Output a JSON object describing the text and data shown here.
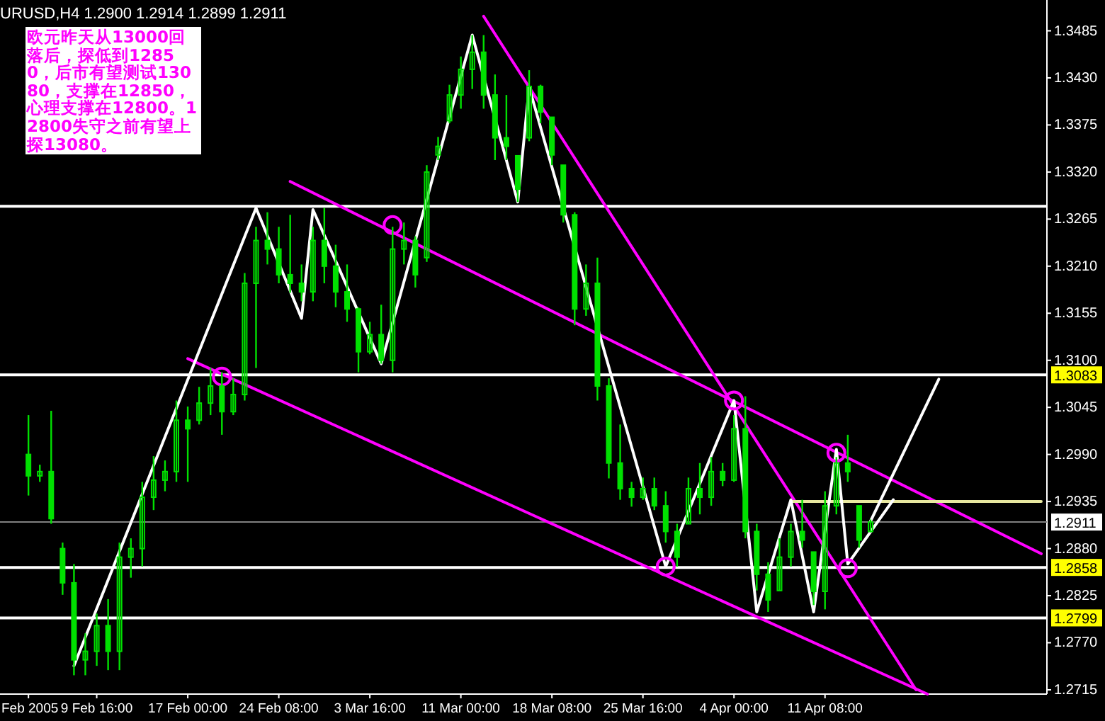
{
  "chart_data": {
    "type": "candlestick",
    "color": "#00e000",
    "categories": [
      null,
      null,
      "Feb 2005",
      null,
      null,
      null,
      null,
      null,
      "9 Feb 16:00",
      null,
      null,
      null,
      null,
      null,
      null,
      null,
      "17 Feb 00:00",
      null,
      null,
      null,
      null,
      null,
      null,
      null,
      "24 Feb 08:00",
      null,
      null,
      null,
      null,
      null,
      null,
      null,
      "3 Mar 16:00",
      null,
      null,
      null,
      null,
      null,
      null,
      null,
      "11 Mar 00:00",
      null,
      null,
      null,
      null,
      null,
      null,
      null,
      "18 Mar 08:00",
      null,
      null,
      null,
      null,
      null,
      null,
      null,
      "25 Mar 16:00",
      null,
      null,
      null,
      null,
      null,
      null,
      null,
      "4 Apr 00:00",
      null,
      null,
      null,
      null,
      null,
      null,
      null,
      "11 Apr 08:00",
      null,
      null,
      null,
      null,
      null,
      null,
      null,
      null,
      null,
      null,
      null,
      null,
      null,
      null,
      null,
      null,
      null,
      null,
      null
    ],
    "ohlc": [
      null,
      null,
      [
        1.299,
        1.3036,
        1.2942,
        1.2965
      ],
      [
        1.2965,
        1.2978,
        1.2958,
        1.297
      ],
      [
        1.297,
        1.3041,
        1.2909,
        1.2915
      ],
      [
        1.288,
        1.2887,
        1.2826,
        1.284
      ],
      [
        1.284,
        1.2862,
        1.2732,
        1.275
      ],
      [
        1.275,
        1.2781,
        1.2732,
        1.276
      ],
      [
        1.276,
        1.2804,
        1.2743,
        1.279
      ],
      [
        1.279,
        1.2821,
        1.2738,
        1.276
      ],
      [
        1.276,
        1.2887,
        1.2738,
        1.287
      ],
      [
        1.287,
        1.2892,
        1.2846,
        1.288
      ],
      [
        1.288,
        1.2958,
        1.2859,
        1.294
      ],
      [
        1.294,
        1.2988,
        1.2925,
        1.296
      ],
      [
        1.296,
        1.2983,
        1.2947,
        1.297
      ],
      [
        1.297,
        1.3053,
        1.2958,
        1.303
      ],
      [
        1.303,
        1.3046,
        1.2958,
        1.302
      ],
      [
        1.303,
        1.3069,
        1.3025,
        1.305
      ],
      [
        1.305,
        1.3091,
        1.3036,
        1.307
      ],
      [
        1.307,
        1.3086,
        1.3013,
        1.304
      ],
      [
        1.304,
        1.3079,
        1.3036,
        1.306
      ],
      [
        1.306,
        1.3202,
        1.3053,
        1.319
      ],
      [
        1.319,
        1.3256,
        1.3091,
        1.324
      ],
      [
        1.324,
        1.3273,
        1.3212,
        1.323
      ],
      [
        1.323,
        1.3256,
        1.319,
        1.32
      ],
      [
        1.32,
        1.327,
        1.3179,
        1.319
      ],
      [
        1.319,
        1.3212,
        1.3169,
        1.318
      ],
      [
        1.318,
        1.3256,
        1.3169,
        1.324
      ],
      [
        1.324,
        1.3278,
        1.319,
        1.321
      ],
      [
        1.321,
        1.3235,
        1.3162,
        1.318
      ],
      [
        1.318,
        1.3212,
        1.3145,
        1.316
      ],
      [
        1.316,
        1.3162,
        1.3086,
        1.311
      ],
      [
        1.311,
        1.3145,
        1.3107,
        1.313
      ],
      [
        1.313,
        1.3165,
        1.3096,
        1.31
      ],
      [
        1.31,
        1.3256,
        1.3086,
        1.323
      ],
      [
        1.323,
        1.3261,
        1.3212,
        1.324
      ],
      [
        1.324,
        1.3245,
        1.3185,
        1.32
      ],
      [
        1.322,
        1.3328,
        1.3215,
        1.332
      ],
      [
        1.334,
        1.3361,
        1.3334,
        1.335
      ],
      [
        1.338,
        1.3422,
        1.3377,
        1.341
      ],
      [
        1.341,
        1.3455,
        1.3394,
        1.344
      ],
      [
        1.344,
        1.348,
        1.3417,
        1.346
      ],
      [
        1.346,
        1.348,
        1.3394,
        1.341
      ],
      [
        1.341,
        1.3434,
        1.3334,
        1.336
      ],
      [
        1.336,
        1.341,
        1.3334,
        1.335
      ],
      [
        1.3339,
        1.3339,
        1.3285,
        1.33
      ],
      [
        1.336,
        1.3439,
        1.3356,
        1.342
      ],
      [
        1.342,
        1.3422,
        1.3377,
        1.339
      ],
      [
        1.3384,
        1.3384,
        1.3328,
        1.334
      ],
      [
        1.3328,
        1.3328,
        1.3261,
        1.327
      ],
      [
        1.327,
        1.3273,
        1.3141,
        1.316
      ],
      [
        1.316,
        1.3212,
        1.3152,
        1.319
      ],
      [
        1.319,
        1.322,
        1.3053,
        1.307
      ],
      [
        1.307,
        1.3079,
        1.2962,
        1.298
      ],
      [
        1.298,
        1.3025,
        1.2937,
        1.295
      ],
      [
        1.295,
        1.2958,
        1.2929,
        1.294
      ],
      [
        1.294,
        1.2963,
        1.2937,
        1.295
      ],
      [
        1.295,
        1.2963,
        1.2925,
        1.293
      ],
      [
        1.293,
        1.2947,
        1.2887,
        1.29
      ],
      [
        1.29,
        1.2909,
        1.2859,
        1.287
      ],
      [
        1.2909,
        1.2963,
        1.2909,
        1.295
      ],
      [
        1.295,
        1.298,
        1.292,
        1.294
      ],
      [
        1.294,
        1.2987,
        1.293,
        1.297
      ],
      [
        1.297,
        1.298,
        1.2953,
        1.296
      ],
      [
        1.296,
        1.3036,
        1.2958,
        1.302
      ],
      [
        1.302,
        1.3058,
        1.2892,
        1.29
      ],
      [
        1.29,
        1.2909,
        1.2831,
        1.285
      ],
      [
        1.285,
        1.2864,
        1.2806,
        1.282
      ],
      [
        1.2831,
        1.2892,
        1.2831,
        1.287
      ],
      [
        1.287,
        1.2909,
        1.2859,
        1.29
      ],
      [
        1.29,
        1.2937,
        1.2881,
        1.289
      ],
      [
        1.2876,
        1.2876,
        1.2814,
        1.283
      ],
      [
        1.283,
        1.2947,
        1.2809,
        1.293
      ],
      [
        1.293,
        1.2987,
        1.292,
        1.298
      ],
      [
        1.298,
        1.3013,
        1.2958,
        1.297
      ],
      [
        1.293,
        1.293,
        1.2881,
        1.289
      ],
      [
        1.29,
        1.2914,
        1.2899,
        1.2911
      ],
      null,
      null,
      null,
      null,
      null,
      null,
      null,
      null,
      null,
      null,
      null,
      null,
      null,
      null,
      null
    ],
    "series": [
      {
        "type": "line",
        "color": "#ff00ff",
        "values": [
          null,
          null,
          null,
          null,
          null,
          null,
          null,
          null,
          null,
          null,
          null,
          null,
          null,
          null,
          null,
          null,
          null,
          null,
          null,
          null,
          null,
          null,
          null,
          null,
          null,
          1.3309,
          null,
          null,
          null,
          null,
          null,
          null,
          null,
          null,
          null,
          null,
          null,
          null,
          null,
          null,
          null,
          null,
          null,
          null,
          null,
          null,
          null,
          null,
          null,
          null,
          null,
          null,
          null,
          null,
          null,
          null,
          null,
          null,
          null,
          null,
          null,
          null,
          null,
          null,
          null,
          null,
          null,
          null,
          null,
          null,
          null,
          null,
          null,
          null,
          null,
          null,
          null,
          null,
          null,
          null,
          null,
          null,
          null,
          null,
          null,
          null,
          null,
          null,
          null,
          null,
          null,
          1.2874
        ]
      },
      {
        "type": "line",
        "color": "#ff00ff",
        "values": [
          null,
          null,
          null,
          null,
          null,
          null,
          null,
          null,
          null,
          null,
          null,
          null,
          null,
          null,
          null,
          null,
          1.3102,
          null,
          null,
          null,
          null,
          null,
          null,
          null,
          null,
          null,
          null,
          null,
          null,
          null,
          null,
          null,
          null,
          null,
          null,
          null,
          null,
          null,
          null,
          null,
          null,
          null,
          null,
          null,
          null,
          null,
          null,
          null,
          null,
          null,
          null,
          null,
          null,
          null,
          null,
          null,
          null,
          null,
          null,
          null,
          null,
          null,
          null,
          null,
          null,
          null,
          null,
          null,
          null,
          null,
          null,
          null,
          null,
          null,
          null,
          null,
          null,
          null,
          null,
          null,
          null,
          1.271,
          null,
          null,
          null,
          null,
          null,
          null,
          null,
          null,
          null,
          null
        ]
      },
      {
        "type": "line",
        "color": "#ff00ff",
        "values": [
          null,
          null,
          null,
          null,
          null,
          null,
          null,
          null,
          null,
          null,
          null,
          null,
          null,
          null,
          null,
          null,
          null,
          null,
          null,
          null,
          null,
          null,
          null,
          null,
          null,
          null,
          null,
          null,
          null,
          null,
          null,
          null,
          null,
          null,
          null,
          null,
          null,
          null,
          null,
          null,
          null,
          null,
          1.3502,
          null,
          null,
          null,
          null,
          null,
          null,
          null,
          null,
          null,
          null,
          null,
          null,
          null,
          null,
          null,
          null,
          null,
          null,
          null,
          null,
          null,
          null,
          null,
          null,
          null,
          null,
          null,
          null,
          null,
          null,
          null,
          null,
          null,
          null,
          null,
          null,
          null,
          1.2715,
          null,
          null,
          null,
          null,
          null,
          null,
          null,
          null,
          null,
          null,
          null
        ]
      },
      {
        "type": "line",
        "color": "#e8e8a0",
        "values": [
          null,
          null,
          null,
          null,
          null,
          null,
          null,
          null,
          null,
          null,
          null,
          null,
          null,
          null,
          null,
          null,
          null,
          null,
          null,
          null,
          null,
          null,
          null,
          null,
          null,
          null,
          null,
          null,
          null,
          null,
          null,
          null,
          null,
          null,
          null,
          null,
          null,
          null,
          null,
          null,
          null,
          null,
          null,
          null,
          null,
          null,
          null,
          null,
          null,
          null,
          null,
          null,
          null,
          null,
          null,
          null,
          null,
          null,
          null,
          null,
          null,
          null,
          null,
          null,
          null,
          null,
          null,
          null,
          null,
          1.2935,
          null,
          null,
          null,
          null,
          null,
          null,
          null,
          null,
          null,
          null,
          null,
          null,
          null,
          null,
          null,
          null,
          null,
          null,
          null,
          null,
          null,
          1.2935
        ]
      },
      {
        "type": "line",
        "color": "#ffffff",
        "values": [
          null,
          null,
          null,
          null,
          null,
          null,
          1.2743,
          null,
          null,
          null,
          null,
          null,
          null,
          null,
          null,
          null,
          null,
          null,
          null,
          null,
          null,
          null,
          1.3278,
          null,
          null,
          null,
          1.3149,
          1.3276,
          null,
          null,
          null,
          null,
          null,
          1.3096,
          null,
          null,
          null,
          null,
          null,
          null,
          null,
          1.348,
          null,
          null,
          null,
          1.3285,
          1.3419,
          null,
          null,
          null,
          null,
          null,
          null,
          null,
          null,
          null,
          null,
          null,
          1.2859,
          null,
          null,
          null,
          null,
          null,
          1.3053,
          null,
          1.2806,
          null,
          null,
          1.2937,
          null,
          1.2806,
          null,
          1.2996,
          1.2862,
          null,
          null,
          null,
          1.2937,
          null,
          null,
          null,
          null,
          null,
          null,
          null,
          null,
          null,
          null,
          null,
          null,
          null
        ]
      },
      {
        "type": "line",
        "color": "#ffffff",
        "values": [
          null,
          null,
          null,
          null,
          null,
          null,
          null,
          null,
          null,
          null,
          null,
          null,
          null,
          null,
          null,
          null,
          null,
          null,
          null,
          null,
          null,
          null,
          null,
          null,
          null,
          null,
          null,
          null,
          null,
          null,
          null,
          null,
          null,
          null,
          null,
          null,
          null,
          null,
          null,
          null,
          null,
          null,
          null,
          null,
          null,
          null,
          null,
          null,
          null,
          null,
          null,
          null,
          null,
          null,
          null,
          null,
          null,
          null,
          null,
          null,
          null,
          null,
          null,
          null,
          null,
          null,
          null,
          null,
          null,
          null,
          null,
          null,
          null,
          null,
          null,
          null,
          1.2912,
          null,
          null,
          null,
          null,
          null,
          1.3078,
          null,
          null,
          null,
          null,
          null,
          null,
          null,
          null,
          null
        ]
      },
      {
        "type": "scatter",
        "color": "#ff00ff",
        "marker": "circle",
        "values": [
          null,
          null,
          null,
          null,
          null,
          null,
          null,
          null,
          null,
          null,
          null,
          null,
          null,
          null,
          null,
          null,
          null,
          null,
          null,
          1.3081,
          null,
          null,
          null,
          null,
          null,
          null,
          null,
          null,
          null,
          null,
          null,
          null,
          null,
          null,
          1.3258,
          null,
          null,
          null,
          null,
          null,
          null,
          null,
          null,
          null,
          null,
          null,
          null,
          null,
          null,
          null,
          null,
          null,
          null,
          null,
          null,
          null,
          null,
          null,
          1.2859,
          null,
          null,
          null,
          null,
          null,
          1.3053,
          null,
          null,
          null,
          null,
          null,
          null,
          null,
          null,
          1.2992,
          1.2857,
          null,
          null,
          null,
          null,
          null,
          null,
          null,
          null,
          null,
          null,
          null,
          null,
          null,
          null,
          null,
          null,
          null
        ]
      }
    ],
    "ref_lines": [
      {
        "axis": "y",
        "value": 1.328,
        "color": "#ffffff"
      },
      {
        "axis": "y",
        "value": 1.3083,
        "label": "1.3083",
        "color": "#ffffff"
      },
      {
        "axis": "y",
        "value": 1.2911,
        "label": "1.2911",
        "color": "#808080"
      },
      {
        "axis": "y",
        "value": 1.2858,
        "label": "1.2858",
        "color": "#ffffff"
      },
      {
        "axis": "y",
        "value": 1.2799,
        "label": "1.2799",
        "color": "#ffffff"
      }
    ],
    "ylim": [
      1.271,
      1.3521
    ],
    "yticks": [
      "1.3485",
      "1.3430",
      "1.3375",
      "1.3320",
      "1.3265",
      "1.3210",
      "1.3155",
      "1.3100",
      "1.3045",
      "1.2990",
      "1.2935",
      "1.2880",
      "1.2825",
      "1.2770",
      "1.2715"
    ],
    "annotations": [
      "URUSD,H4  1.2900 1.2914 1.2899 1.2911",
      "欧元昨天从13000回落后，探低到12850，后市有望测试13080，支撑在12850，心理支撑在12800。12800失守之前有望上探13080。"
    ]
  }
}
